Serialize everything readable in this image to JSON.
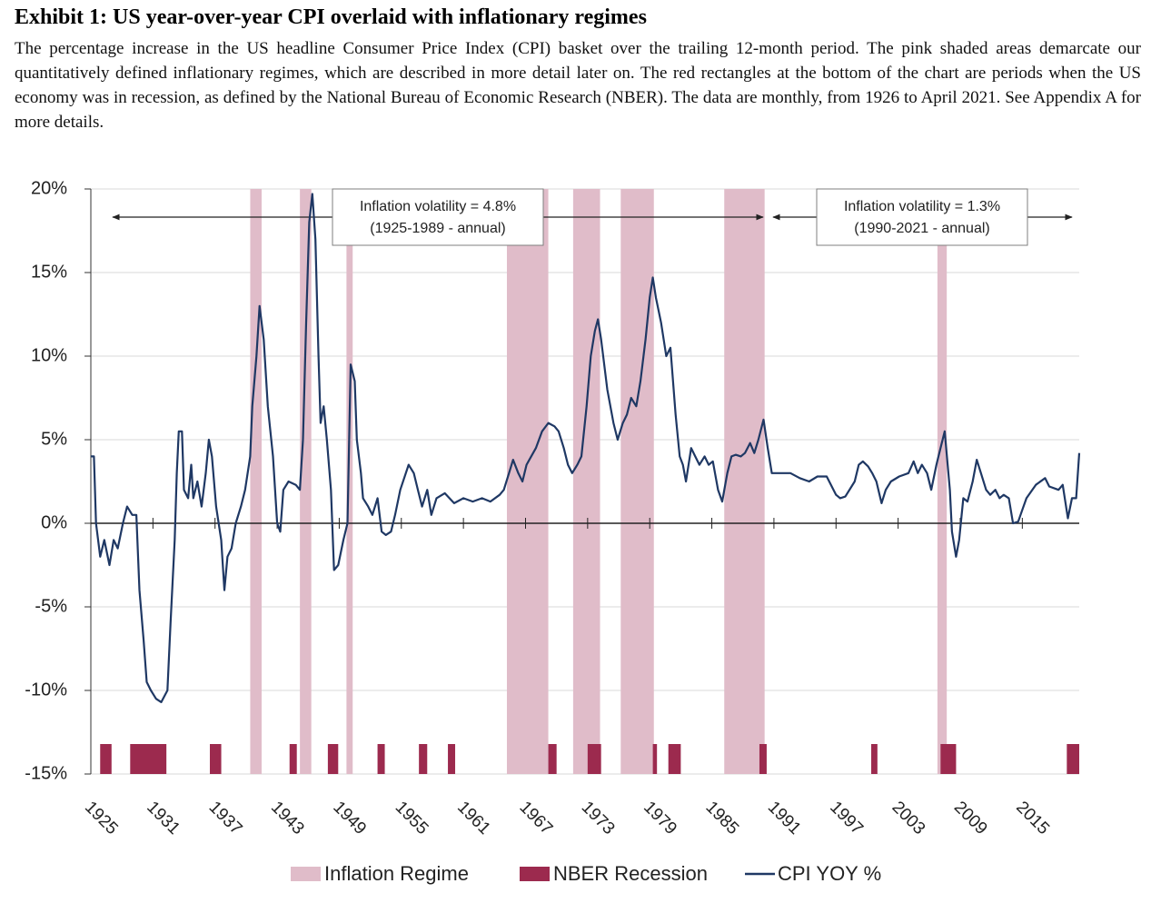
{
  "chart_data": {
    "type": "line",
    "title": "Exhibit 1: US year-over-year CPI overlaid with inflationary regimes",
    "subtitle": "The percentage increase in the US headline Consumer Price Index (CPI) basket over the trailing 12-month period. The pink shaded areas demarcate our quantitatively defined inflationary regimes, which are described in more detail later on. The red rectangles at the bottom of the chart are periods when the US economy was in recession, as defined by the National Bureau of Economic Research (NBER). The data are monthly, from 1926 to April 2021. See Appendix A for more details.",
    "xlim": [
      1925,
      2020.5
    ],
    "xticks": [
      1925,
      1931,
      1937,
      1943,
      1949,
      1955,
      1961,
      1967,
      1973,
      1979,
      1985,
      1991,
      1997,
      2003,
      2009,
      2015
    ],
    "ylim": [
      -15,
      20
    ],
    "yticks": [
      {
        "value": -15,
        "label": "-15%"
      },
      {
        "value": -10,
        "label": "-10%"
      },
      {
        "value": -5,
        "label": "-5%"
      },
      {
        "value": 0,
        "label": "0%"
      },
      {
        "value": 5,
        "label": "5%"
      },
      {
        "value": 10,
        "label": "10%"
      },
      {
        "value": 15,
        "label": "15%"
      },
      {
        "value": 20,
        "label": "20%"
      }
    ],
    "grid": true,
    "x": [
      1925.0,
      1925.3,
      1925.5,
      1925.9,
      1926.3,
      1926.8,
      1927.2,
      1927.6,
      1928.1,
      1928.5,
      1929.0,
      1929.4,
      1929.7,
      1930.1,
      1930.4,
      1930.8,
      1931.3,
      1931.8,
      1932.4,
      1932.7,
      1933.1,
      1933.3,
      1933.5,
      1933.8,
      1934.0,
      1934.4,
      1934.7,
      1934.9,
      1935.3,
      1935.7,
      1936.1,
      1936.4,
      1936.7,
      1937.1,
      1937.6,
      1937.9,
      1938.2,
      1938.6,
      1939.0,
      1939.5,
      1939.9,
      1940.4,
      1940.6,
      1941.0,
      1941.3,
      1941.7,
      1942.1,
      1942.6,
      1943.0,
      1943.3,
      1943.6,
      1944.1,
      1944.8,
      1945.2,
      1945.5,
      1945.8,
      1946.1,
      1946.4,
      1946.7,
      1947.0,
      1947.2,
      1947.5,
      1947.8,
      1948.2,
      1948.5,
      1948.9,
      1949.4,
      1949.8,
      1950.1,
      1950.5,
      1950.7,
      1951.1,
      1951.3,
      1951.8,
      1952.2,
      1952.7,
      1953.1,
      1953.5,
      1954.0,
      1954.4,
      1954.9,
      1955.7,
      1956.2,
      1956.6,
      1957.0,
      1957.5,
      1957.9,
      1958.4,
      1959.2,
      1960.1,
      1961.0,
      1961.9,
      1962.8,
      1963.6,
      1964.5,
      1964.9,
      1965.4,
      1965.8,
      1966.3,
      1966.7,
      1967.1,
      1968.0,
      1968.6,
      1969.2,
      1969.8,
      1970.2,
      1970.7,
      1971.1,
      1971.5,
      1972.0,
      1972.4,
      1972.9,
      1973.3,
      1973.7,
      1974.0,
      1974.3,
      1974.9,
      1975.5,
      1975.9,
      1976.4,
      1976.8,
      1977.2,
      1977.7,
      1978.1,
      1978.6,
      1979.0,
      1979.3,
      1979.6,
      1980.1,
      1980.6,
      1981.0,
      1981.5,
      1981.9,
      1982.2,
      1982.5,
      1983.0,
      1983.4,
      1983.8,
      1984.3,
      1984.7,
      1985.1,
      1985.6,
      1986.0,
      1986.5,
      1986.9,
      1987.3,
      1987.8,
      1988.2,
      1988.7,
      1989.1,
      1989.5,
      1990.0,
      1990.4,
      1990.8,
      1991.7,
      1992.6,
      1993.5,
      1994.4,
      1995.2,
      1996.1,
      1997.0,
      1997.4,
      1997.9,
      1998.8,
      1999.2,
      1999.6,
      2000.1,
      2000.5,
      2000.9,
      2001.4,
      2001.8,
      2002.3,
      2003.1,
      2004.0,
      2004.5,
      2004.9,
      2005.3,
      2005.8,
      2006.2,
      2006.7,
      2007.1,
      2007.5,
      2008.0,
      2008.2,
      2008.6,
      2008.9,
      2009.3,
      2009.7,
      2010.2,
      2010.6,
      2011.0,
      2011.5,
      2011.9,
      2012.4,
      2012.8,
      2013.2,
      2013.7,
      2014.1,
      2014.6,
      2015.0,
      2015.4,
      2016.3,
      2017.2,
      2017.6,
      2018.5,
      2018.9,
      2019.4,
      2019.8,
      2020.2,
      2020.5
    ],
    "series": [
      {
        "name": "CPI YOY %",
        "color": "#1f3864",
        "values": [
          4,
          4,
          0,
          -2,
          -1,
          -2.5,
          -1,
          -1.5,
          0,
          1,
          0.5,
          0.5,
          -4,
          -7,
          -9.5,
          -10,
          -10.5,
          -10.7,
          -10,
          -6,
          -1,
          3,
          5.5,
          5.5,
          2,
          1.5,
          3.5,
          1.5,
          2.5,
          1,
          3,
          5,
          4,
          1,
          -1,
          -4,
          -2,
          -1.5,
          0,
          1,
          2,
          4,
          7,
          10,
          13,
          11,
          7,
          4,
          0,
          -0.5,
          2,
          2.5,
          2.3,
          2,
          5,
          12,
          18,
          19.7,
          17,
          10,
          6,
          7,
          5,
          2,
          -2.8,
          -2.5,
          -1,
          0,
          9.5,
          8.5,
          5,
          3,
          1.5,
          1,
          0.5,
          1.5,
          -0.5,
          -0.7,
          -0.5,
          0.5,
          2,
          3.5,
          3,
          2,
          1,
          2,
          0.5,
          1.5,
          1.8,
          1.2,
          1.5,
          1.3,
          1.5,
          1.3,
          1.7,
          2,
          3,
          3.8,
          3,
          2.5,
          3.5,
          4.5,
          5.5,
          6,
          5.8,
          5.5,
          4.5,
          3.5,
          3,
          3.5,
          4,
          7,
          10,
          11.5,
          12.2,
          11,
          8,
          6,
          5,
          6,
          6.5,
          7.5,
          7,
          8.5,
          11,
          13.5,
          14.7,
          13.5,
          12,
          10,
          10.5,
          6.5,
          4,
          3.5,
          2.5,
          4.5,
          4,
          3.5,
          4,
          3.5,
          3.7,
          2,
          1.3,
          3,
          4,
          4.1,
          4,
          4.2,
          4.8,
          4.2,
          5,
          6.2,
          4.5,
          3,
          3,
          3,
          2.7,
          2.5,
          2.8,
          2.8,
          1.7,
          1.5,
          1.6,
          2.5,
          3.5,
          3.7,
          3.4,
          3,
          2.5,
          1.2,
          2,
          2.5,
          2.8,
          3,
          3.7,
          3,
          3.5,
          3,
          2,
          3.5,
          4.5,
          5.5,
          2,
          -0.5,
          -2,
          -1,
          1.5,
          1.3,
          2.5,
          3.8,
          3,
          2,
          1.7,
          2,
          1.5,
          1.7,
          1.5,
          0,
          0.1,
          0.8,
          1.5,
          2.3,
          2.7,
          2.2,
          2,
          2.3,
          0.3,
          1.5,
          1.5,
          4.2
        ]
      }
    ],
    "regimes": {
      "name": "Inflation Regime",
      "color": "#e0bcc9",
      "ranges": [
        [
          1940.4,
          1941.5
        ],
        [
          1945.2,
          1946.3
        ],
        [
          1949.7,
          1950.3
        ],
        [
          1965.2,
          1969.2
        ],
        [
          1971.6,
          1974.2
        ],
        [
          1976.2,
          1979.4
        ],
        [
          1986.2,
          1990.1
        ],
        [
          2006.8,
          2007.7
        ]
      ]
    },
    "recessions": {
      "name": "NBER Recession",
      "color": "#9c2a4e",
      "ranges": [
        [
          1925.9,
          1927.0
        ],
        [
          1928.8,
          1932.3
        ],
        [
          1936.5,
          1937.6
        ],
        [
          1944.2,
          1944.9
        ],
        [
          1947.9,
          1948.9
        ],
        [
          1952.7,
          1953.4
        ],
        [
          1956.7,
          1957.5
        ],
        [
          1959.5,
          1960.2
        ],
        [
          1969.2,
          1970.0
        ],
        [
          1973.0,
          1974.3
        ],
        [
          1979.3,
          1979.7
        ],
        [
          1980.8,
          1982.0
        ],
        [
          1989.6,
          1990.3
        ],
        [
          2000.4,
          2001.0
        ],
        [
          2007.1,
          2008.6
        ],
        [
          2019.3,
          2020.5
        ]
      ]
    },
    "annotations": [
      {
        "lines": [
          "Inflation volatility = 4.8%",
          "(1925-1989 - annual)"
        ]
      },
      {
        "lines": [
          "Inflation volatility = 1.3%",
          "(1990-2021 - annual)"
        ]
      }
    ]
  }
}
